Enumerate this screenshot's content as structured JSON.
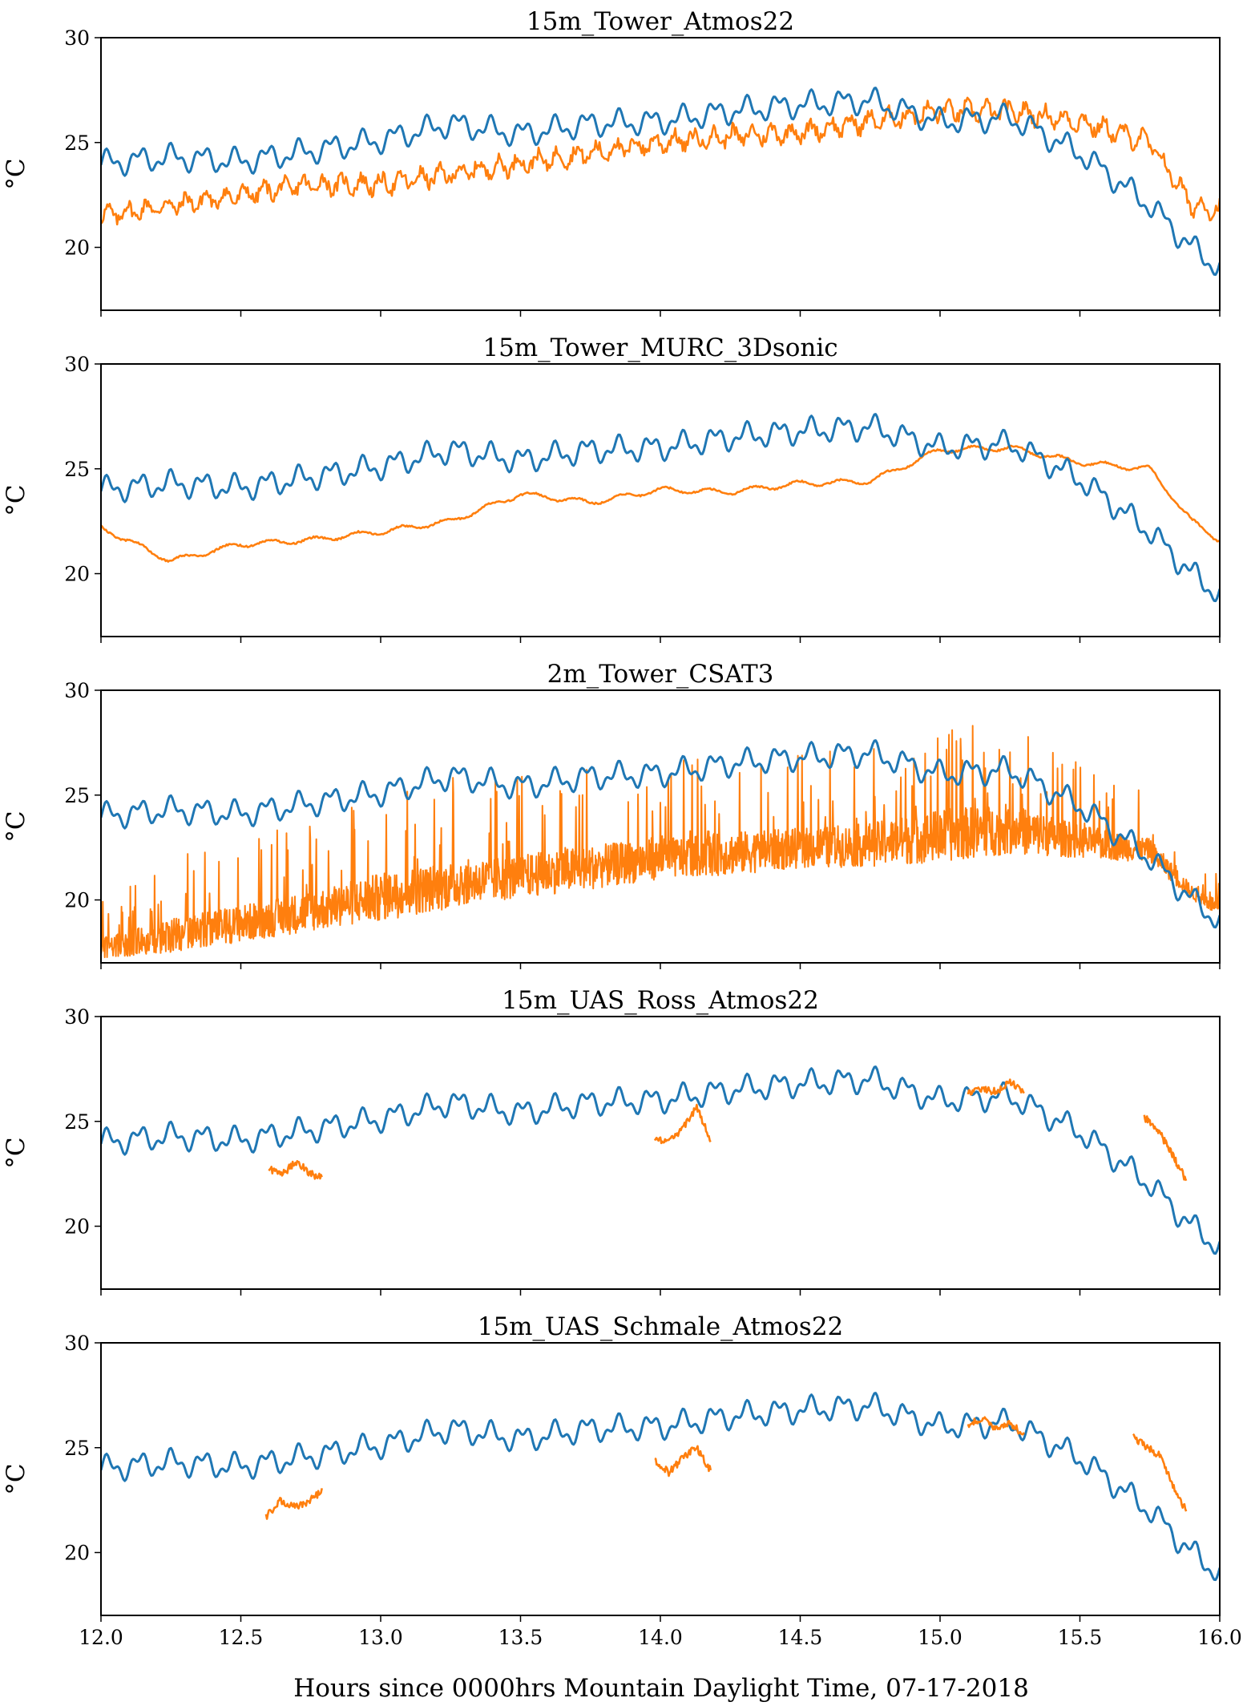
{
  "figure": {
    "xlabel": "Hours since 0000hrs Mountain Daylight Time, 07-17-2018",
    "xlim": [
      12.0,
      16.0
    ],
    "xticks": [
      12.0,
      12.5,
      13.0,
      13.5,
      14.0,
      14.5,
      15.0,
      15.5,
      16.0
    ],
    "xtick_labels": [
      "12.0",
      "12.5",
      "13.0",
      "13.5",
      "14.0",
      "14.5",
      "15.0",
      "15.5",
      "16.0"
    ],
    "colors": {
      "reference": "#1f77b4",
      "sensor": "#ff7f0e"
    }
  },
  "chart_data": [
    {
      "type": "line",
      "title": "15m_Tower_Atmos22",
      "ylabel": "°C",
      "ylim": [
        17,
        30
      ],
      "yticks": [
        20,
        25,
        30
      ],
      "x": [
        12.0,
        12.25,
        12.5,
        12.75,
        13.0,
        13.25,
        13.5,
        13.75,
        14.0,
        14.25,
        14.5,
        14.75,
        15.0,
        15.25,
        15.5,
        15.75,
        15.9,
        16.0
      ],
      "series": [
        {
          "values": [
            24.0,
            24.3,
            24.1,
            24.6,
            25.1,
            25.9,
            25.4,
            25.9,
            26.0,
            26.5,
            26.8,
            27.0,
            26.0,
            26.2,
            24.5,
            22.0,
            20.0,
            19.0
          ]
        },
        {
          "values": [
            21.5,
            22.0,
            22.5,
            23.0,
            23.0,
            23.5,
            24.0,
            24.5,
            25.0,
            25.3,
            25.5,
            26.0,
            26.5,
            26.5,
            26.0,
            25.0,
            22.0,
            21.8
          ]
        }
      ]
    },
    {
      "type": "line",
      "title": "15m_Tower_MURC_3Dsonic",
      "ylabel": "°C",
      "ylim": [
        17,
        30
      ],
      "yticks": [
        20,
        25,
        30
      ],
      "x": [
        12.0,
        12.25,
        12.5,
        12.75,
        13.0,
        13.25,
        13.5,
        13.75,
        14.0,
        14.25,
        14.5,
        14.75,
        15.0,
        15.25,
        15.5,
        15.75,
        15.9,
        16.0
      ],
      "series": [
        {
          "values": [
            24.0,
            24.3,
            24.1,
            24.6,
            25.1,
            25.9,
            25.4,
            25.9,
            26.0,
            26.5,
            26.8,
            27.0,
            26.0,
            26.2,
            24.5,
            22.0,
            20.0,
            19.0
          ]
        },
        {
          "values": [
            22.2,
            20.6,
            21.4,
            21.6,
            22.0,
            22.5,
            23.8,
            23.4,
            24.0,
            23.9,
            24.3,
            24.4,
            25.9,
            26.0,
            25.3,
            25.0,
            22.5,
            21.6
          ]
        }
      ]
    },
    {
      "type": "line",
      "title": "2m_Tower_CSAT3",
      "ylabel": "°C",
      "ylim": [
        17,
        30
      ],
      "yticks": [
        20,
        25,
        30
      ],
      "x": [
        12.0,
        12.25,
        12.5,
        12.75,
        13.0,
        13.25,
        13.5,
        13.75,
        14.0,
        14.25,
        14.5,
        14.75,
        15.0,
        15.25,
        15.5,
        15.75,
        15.9,
        16.0
      ],
      "series": [
        {
          "values": [
            24.0,
            24.3,
            24.1,
            24.6,
            25.1,
            25.9,
            25.4,
            25.9,
            26.0,
            26.5,
            26.8,
            27.0,
            26.0,
            26.2,
            24.5,
            22.0,
            20.0,
            19.0
          ]
        },
        {
          "values": [
            17.2,
            17.5,
            18.0,
            18.5,
            19.0,
            19.6,
            20.1,
            20.5,
            21.0,
            21.2,
            21.5,
            21.6,
            21.8,
            22.2,
            22.0,
            21.8,
            20.0,
            19.2
          ],
          "spikes_max": [
            20.0,
            22.0,
            23.0,
            24.0,
            25.5,
            26.0,
            26.0,
            26.5,
            26.5,
            27.0,
            27.0,
            27.5,
            29.0,
            29.0,
            26.5,
            25.0,
            22.0,
            21.5
          ]
        }
      ]
    },
    {
      "type": "line",
      "title": "15m_UAS_Ross_Atmos22",
      "ylabel": "°C",
      "ylim": [
        17,
        30
      ],
      "yticks": [
        20,
        25,
        30
      ],
      "x": [
        12.0,
        12.25,
        12.5,
        12.75,
        13.0,
        13.25,
        13.5,
        13.75,
        14.0,
        14.25,
        14.5,
        14.75,
        15.0,
        15.25,
        15.5,
        15.75,
        15.9,
        16.0
      ],
      "series": [
        {
          "values": [
            24.0,
            24.3,
            24.1,
            24.6,
            25.1,
            25.9,
            25.4,
            25.9,
            26.0,
            26.5,
            26.8,
            27.0,
            26.0,
            26.2,
            24.5,
            22.0,
            20.0,
            19.0
          ]
        }
      ],
      "segments": [
        {
          "x": [
            12.6,
            12.65,
            12.7,
            12.75,
            12.79
          ],
          "values": [
            22.7,
            22.5,
            23.1,
            22.5,
            22.3
          ]
        },
        {
          "x": [
            13.98,
            14.03,
            14.08,
            14.13,
            14.18
          ],
          "values": [
            24.2,
            24.0,
            24.7,
            25.7,
            24.1
          ]
        },
        {
          "x": [
            15.1,
            15.15,
            15.2,
            15.25,
            15.3
          ],
          "values": [
            26.3,
            26.6,
            26.4,
            26.9,
            26.3
          ]
        },
        {
          "x": [
            15.73,
            15.78,
            15.83,
            15.88
          ],
          "values": [
            25.2,
            24.6,
            23.4,
            22.2
          ]
        }
      ]
    },
    {
      "type": "line",
      "title": "15m_UAS_Schmale_Atmos22",
      "ylabel": "°C",
      "ylim": [
        17,
        30
      ],
      "yticks": [
        20,
        25,
        30
      ],
      "x": [
        12.0,
        12.25,
        12.5,
        12.75,
        13.0,
        13.25,
        13.5,
        13.75,
        14.0,
        14.25,
        14.5,
        14.75,
        15.0,
        15.25,
        15.5,
        15.75,
        15.9,
        16.0
      ],
      "series": [
        {
          "values": [
            24.0,
            24.3,
            24.1,
            24.6,
            25.1,
            25.9,
            25.4,
            25.9,
            26.0,
            26.5,
            26.8,
            27.0,
            26.0,
            26.2,
            24.5,
            22.0,
            20.0,
            19.0
          ]
        }
      ],
      "segments": [
        {
          "x": [
            12.59,
            12.64,
            12.69,
            12.74,
            12.79
          ],
          "values": [
            21.7,
            22.5,
            22.2,
            22.4,
            22.9
          ]
        },
        {
          "x": [
            13.98,
            14.03,
            14.08,
            14.13,
            14.18
          ],
          "values": [
            24.4,
            23.8,
            24.5,
            25.0,
            23.9
          ]
        },
        {
          "x": [
            15.1,
            15.15,
            15.2,
            15.25,
            15.3
          ],
          "values": [
            26.1,
            26.4,
            25.9,
            26.2,
            25.6
          ]
        },
        {
          "x": [
            15.69,
            15.74,
            15.79,
            15.84,
            15.88
          ],
          "values": [
            25.5,
            25.0,
            24.6,
            22.9,
            22.0
          ]
        }
      ]
    }
  ]
}
